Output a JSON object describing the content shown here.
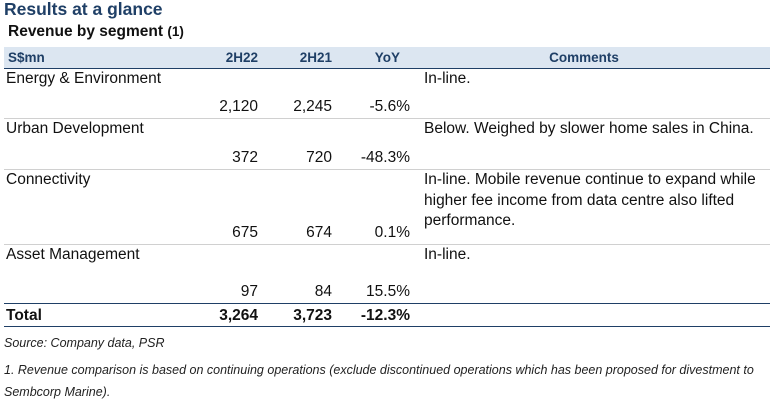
{
  "title": "Results at a glance",
  "subtitle": {
    "text": "Revenue by segment",
    "note": "(1)"
  },
  "table": {
    "headers": [
      "S$mn",
      "2H22",
      "2H21",
      "YoY",
      "Comments"
    ],
    "rows": [
      {
        "segment": "Energy & Environment",
        "h2_22": "2,120",
        "h2_21": "2,245",
        "yoy": "-5.6%",
        "comment": "In-line."
      },
      {
        "segment": "Urban Development",
        "h2_22": "372",
        "h2_21": "720",
        "yoy": "-48.3%",
        "comment": "Below. Weighed by slower home sales in China."
      },
      {
        "segment": "Connectivity",
        "h2_22": "675",
        "h2_21": "674",
        "yoy": "0.1%",
        "comment": "In-line. Mobile revenue continue to expand while higher fee income from data centre also lifted performance."
      },
      {
        "segment": "Asset Management",
        "h2_22": "97",
        "h2_21": "84",
        "yoy": "15.5%",
        "comment": "In-line."
      }
    ],
    "total": {
      "label": "Total",
      "h2_22": "3,264",
      "h2_21": "3,723",
      "yoy": "-12.3%"
    }
  },
  "footnotes": {
    "source": "Source: Company data, PSR",
    "note1": "1. Revenue comparison is based on continuing operations (exclude discontinued operations which has been proposed for divestment to Sembcorp Marine)."
  },
  "colors": {
    "title": "#1f3f66",
    "header_bg": "#dce6f1",
    "header_text": "#1f3f66",
    "rule": "#1f3f66"
  }
}
